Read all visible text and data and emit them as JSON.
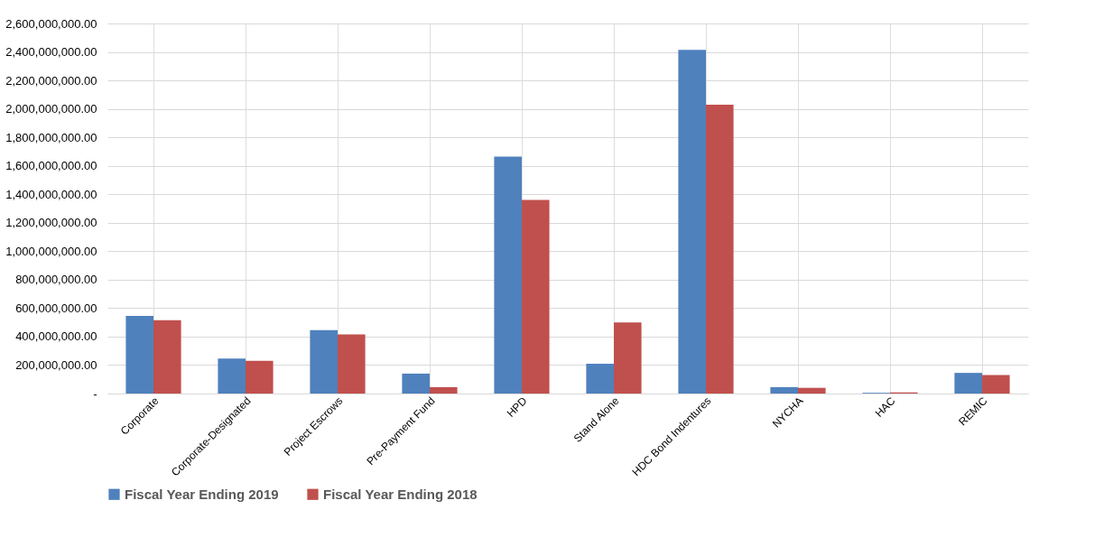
{
  "chart_data": {
    "type": "bar",
    "categories": [
      "Corporate",
      "Corporate-Designated",
      "Project Escrows",
      "Pre-Payment Fund",
      "HPD",
      "Stand Alone",
      "HDC Bond Indentures",
      "NYCHA",
      "HAC",
      "REMIC"
    ],
    "series": [
      {
        "name": "Fiscal Year Ending 2019",
        "color": "#4f81bd",
        "values": [
          545000000,
          245000000,
          445000000,
          140000000,
          1665000000,
          210000000,
          2415000000,
          45000000,
          5000000,
          145000000
        ]
      },
      {
        "name": "Fiscal Year Ending 2018",
        "color": "#c0504d",
        "values": [
          515000000,
          230000000,
          415000000,
          45000000,
          1360000000,
          500000000,
          2030000000,
          40000000,
          8000000,
          130000000
        ]
      }
    ],
    "ylim": [
      0,
      2600000000
    ],
    "yticks": [
      {
        "value": 0,
        "label": "-"
      },
      {
        "value": 200000000,
        "label": "200,000,000.00"
      },
      {
        "value": 400000000,
        "label": "400,000,000.00"
      },
      {
        "value": 600000000,
        "label": "600,000,000.00"
      },
      {
        "value": 800000000,
        "label": "800,000,000.00"
      },
      {
        "value": 1000000000,
        "label": "1,000,000,000.00"
      },
      {
        "value": 1200000000,
        "label": "1,200,000,000.00"
      },
      {
        "value": 1400000000,
        "label": "1,400,000,000.00"
      },
      {
        "value": 1600000000,
        "label": "1,600,000,000.00"
      },
      {
        "value": 1800000000,
        "label": "1,800,000,000.00"
      },
      {
        "value": 2000000000,
        "label": "2,000,000,000.00"
      },
      {
        "value": 2200000000,
        "label": "2,200,000,000.00"
      },
      {
        "value": 2400000000,
        "label": "2,400,000,000.00"
      },
      {
        "value": 2600000000,
        "label": "2,600,000,000.00"
      }
    ],
    "grid": true,
    "legend": "bottom"
  }
}
